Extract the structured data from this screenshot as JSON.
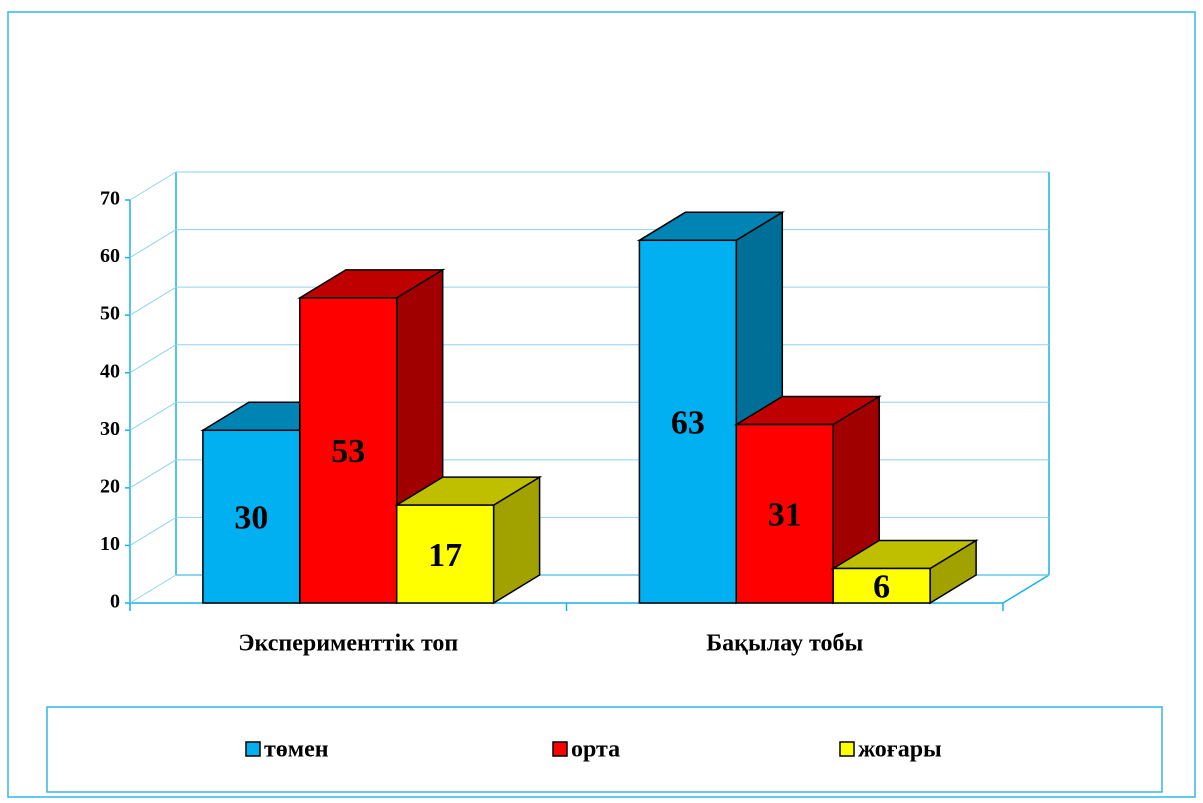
{
  "chart_data": {
    "type": "bar3d",
    "categories": [
      "Эксперименттік топ",
      "Бақылау тобы"
    ],
    "series": [
      {
        "name": "төмен",
        "color": "#00b0f0",
        "values": [
          30,
          63
        ]
      },
      {
        "name": "орта",
        "color": "#ff0000",
        "values": [
          53,
          31
        ]
      },
      {
        "name": "жоғары",
        "color": "#ffff00",
        "values": [
          17,
          6
        ]
      }
    ],
    "ylim": [
      0,
      70
    ],
    "yticks": [
      0,
      10,
      20,
      30,
      40,
      50,
      60,
      70
    ],
    "grid": true,
    "legend": "bottom"
  }
}
